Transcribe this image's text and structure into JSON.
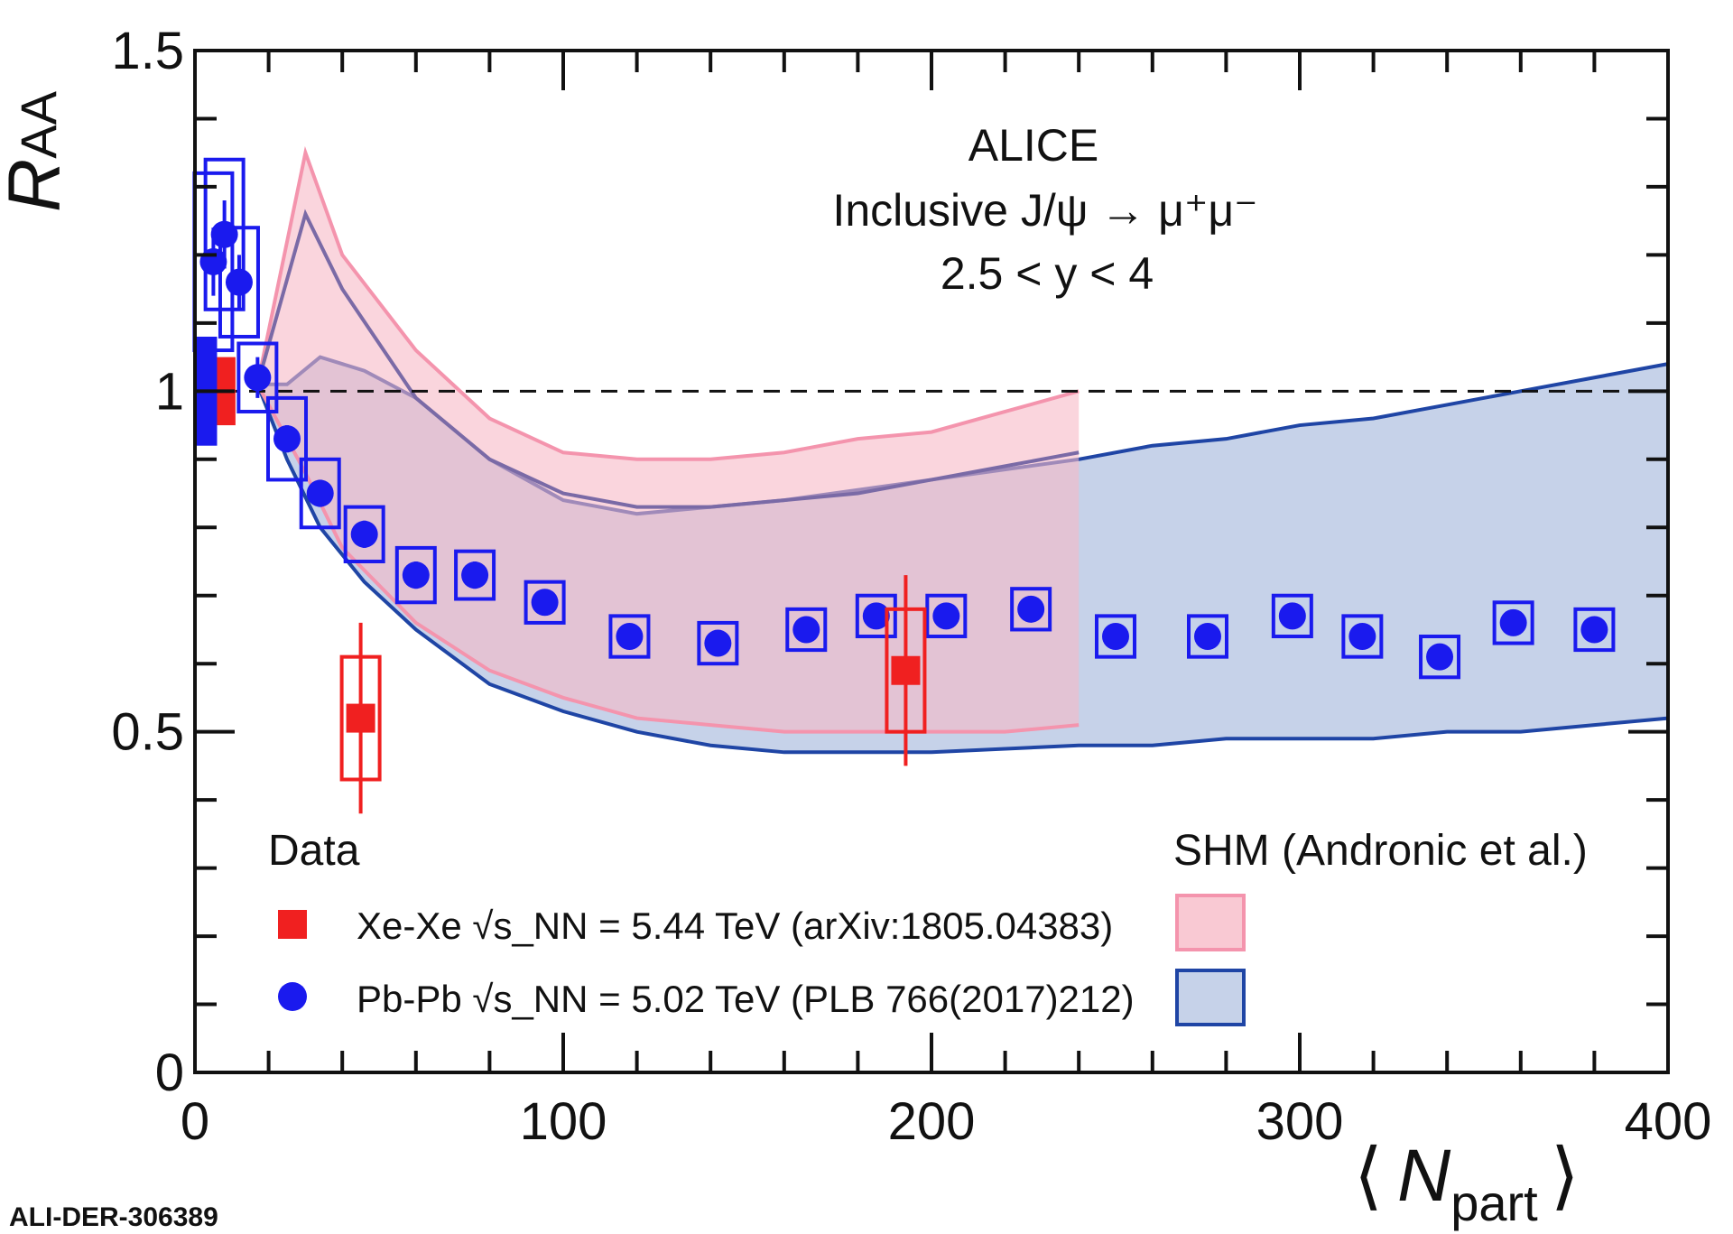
{
  "chart_data": {
    "type": "scatter",
    "title": "ALICE",
    "annotations": {
      "experiment": "ALICE",
      "process": "Inclusive J/ψ → μ⁺μ⁻",
      "rapidity": "2.5 < y < 4"
    },
    "xlabel": "⟨ N_part ⟩",
    "ylabel": "R_AA",
    "xlim": [
      0,
      400
    ],
    "ylim": [
      0,
      1.5
    ],
    "x_ticks": [
      "0",
      "100",
      "200",
      "300",
      "400"
    ],
    "y_ticks": [
      "0",
      "0.5",
      "1",
      "1.5"
    ],
    "reference_line": 1.0,
    "grid": false,
    "legend": {
      "data_header": "Data",
      "model_header": "SHM (Andronic et al.)",
      "xexe_label": "Xe-Xe √s_NN = 5.44 TeV (arXiv:1805.04383)",
      "pbpb_label": "Pb-Pb √s_NN = 5.02 TeV (PLB 766(2017)212)"
    },
    "series": [
      {
        "name": "Xe-Xe 5.44 TeV",
        "color": "#f02020",
        "marker": "square",
        "points": [
          {
            "x": 45,
            "y": 0.52,
            "stat": 0.14,
            "sys": 0.09
          },
          {
            "x": 193,
            "y": 0.59,
            "stat": 0.14,
            "sys": 0.09
          }
        ]
      },
      {
        "name": "Pb-Pb 5.02 TeV",
        "color": "#1a1aee",
        "marker": "circle",
        "points": [
          {
            "x": 5,
            "y": 1.19,
            "stat": 0.05,
            "sys": 0.13
          },
          {
            "x": 8,
            "y": 1.23,
            "stat": 0.05,
            "sys": 0.11
          },
          {
            "x": 12,
            "y": 1.16,
            "stat": 0.04,
            "sys": 0.08
          },
          {
            "x": 17,
            "y": 1.02,
            "stat": 0.03,
            "sys": 0.05
          },
          {
            "x": 25,
            "y": 0.93,
            "stat": 0.02,
            "sys": 0.06
          },
          {
            "x": 34,
            "y": 0.85,
            "stat": 0.02,
            "sys": 0.05
          },
          {
            "x": 46,
            "y": 0.79,
            "stat": 0.02,
            "sys": 0.04
          },
          {
            "x": 60,
            "y": 0.73,
            "stat": 0.02,
            "sys": 0.04
          },
          {
            "x": 76,
            "y": 0.73,
            "stat": 0.02,
            "sys": 0.035
          },
          {
            "x": 95,
            "y": 0.69,
            "stat": 0.015,
            "sys": 0.03
          },
          {
            "x": 118,
            "y": 0.64,
            "stat": 0.015,
            "sys": 0.03
          },
          {
            "x": 142,
            "y": 0.63,
            "stat": 0.015,
            "sys": 0.03
          },
          {
            "x": 166,
            "y": 0.65,
            "stat": 0.015,
            "sys": 0.03
          },
          {
            "x": 185,
            "y": 0.67,
            "stat": 0.015,
            "sys": 0.03
          },
          {
            "x": 204,
            "y": 0.67,
            "stat": 0.015,
            "sys": 0.03
          },
          {
            "x": 227,
            "y": 0.68,
            "stat": 0.015,
            "sys": 0.03
          },
          {
            "x": 250,
            "y": 0.64,
            "stat": 0.015,
            "sys": 0.03
          },
          {
            "x": 275,
            "y": 0.64,
            "stat": 0.015,
            "sys": 0.03
          },
          {
            "x": 298,
            "y": 0.67,
            "stat": 0.015,
            "sys": 0.03
          },
          {
            "x": 317,
            "y": 0.64,
            "stat": 0.015,
            "sys": 0.03
          },
          {
            "x": 338,
            "y": 0.61,
            "stat": 0.015,
            "sys": 0.03
          },
          {
            "x": 358,
            "y": 0.66,
            "stat": 0.015,
            "sys": 0.03
          },
          {
            "x": 380,
            "y": 0.65,
            "stat": 0.015,
            "sys": 0.03
          }
        ],
        "global_uncertainty_box": {
          "x": 2,
          "y": 1.0,
          "half": 0.08
        }
      }
    ],
    "xexe_global_uncertainty_box": {
      "x": 8,
      "y": 1.0,
      "half": 0.05
    },
    "bands": [
      {
        "name": "SHM Pb-Pb",
        "fill": "#c6d2e9",
        "edge": "#1f45a5",
        "x": [
          17,
          25,
          34,
          46,
          60,
          80,
          100,
          120,
          140,
          160,
          200,
          240,
          260,
          280,
          300,
          320,
          340,
          360,
          380,
          400
        ],
        "lower": [
          1.01,
          0.9,
          0.8,
          0.72,
          0.65,
          0.57,
          0.53,
          0.5,
          0.48,
          0.47,
          0.47,
          0.48,
          0.48,
          0.49,
          0.49,
          0.49,
          0.5,
          0.5,
          0.51,
          0.52
        ],
        "upper": [
          1.01,
          1.01,
          1.05,
          1.03,
          0.99,
          0.9,
          0.84,
          0.82,
          0.83,
          0.84,
          0.87,
          0.9,
          0.92,
          0.93,
          0.95,
          0.96,
          0.98,
          1.0,
          1.02,
          1.04
        ]
      },
      {
        "name": "SHM Xe-Xe",
        "fill": "#f7b9c6",
        "edge": "#f494ad",
        "fill_opacity": 0.6,
        "x": [
          17,
          30,
          40,
          60,
          80,
          100,
          120,
          140,
          160,
          180,
          200,
          220,
          240
        ],
        "lower": [
          1.01,
          0.88,
          0.77,
          0.66,
          0.59,
          0.55,
          0.52,
          0.51,
          0.5,
          0.5,
          0.5,
          0.5,
          0.51
        ],
        "upper": [
          1.01,
          1.35,
          1.2,
          1.06,
          0.96,
          0.91,
          0.9,
          0.9,
          0.91,
          0.93,
          0.94,
          0.97,
          1.0
        ],
        "central": [
          1.01,
          1.26,
          1.15,
          0.99,
          0.9,
          0.85,
          0.83,
          0.83,
          0.84,
          0.85,
          0.87,
          0.89,
          0.91
        ]
      }
    ]
  },
  "watermark": "ALI-DER-306389",
  "colors": {
    "axis": "#111111",
    "xexe": "#f02020",
    "pbpb": "#1a1aee",
    "dashed": "#111111"
  }
}
